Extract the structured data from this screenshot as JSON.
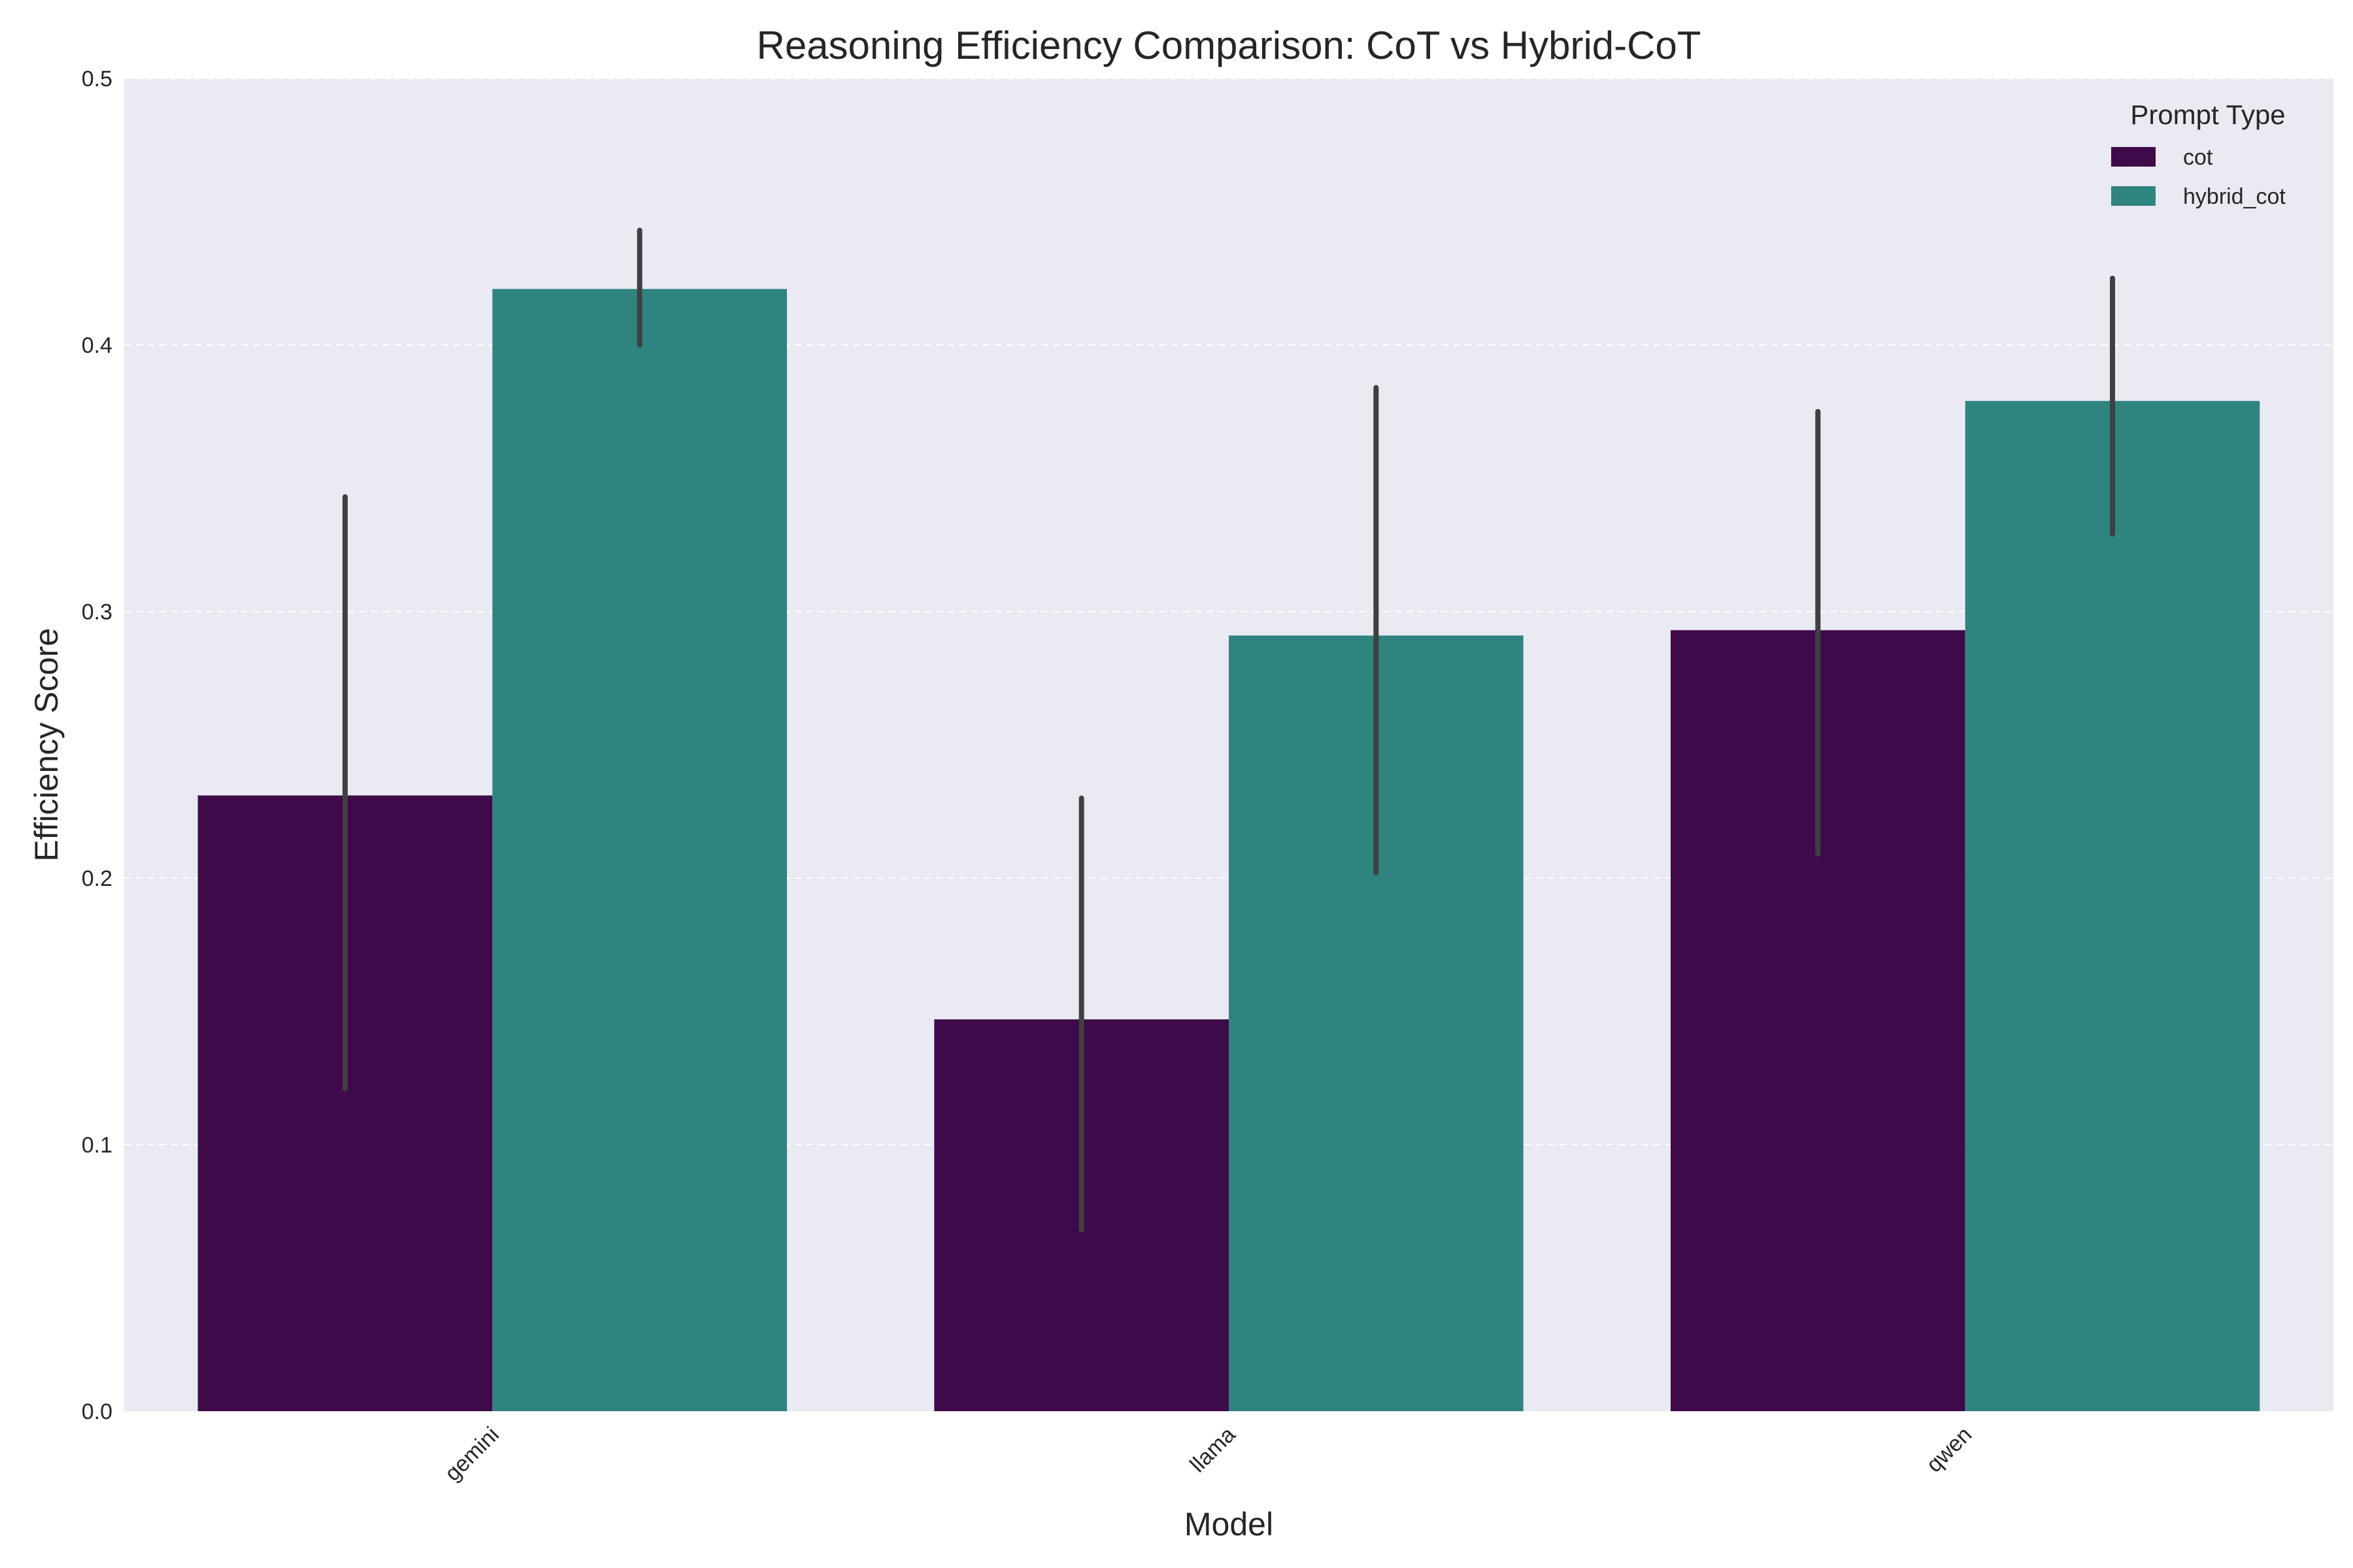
{
  "chart_data": {
    "type": "bar",
    "title": "Reasoning Efficiency Comparison: CoT vs Hybrid-CoT",
    "xlabel": "Model",
    "ylabel": "Efficiency Score",
    "categories": [
      "gemini",
      "llama",
      "qwen"
    ],
    "ylim": [
      0,
      0.5
    ],
    "yticks": [
      0.0,
      0.1,
      0.2,
      0.3,
      0.4,
      0.5
    ],
    "grid": true,
    "legend": {
      "title": "Prompt Type",
      "placement": "top-right"
    },
    "series": [
      {
        "name": "cot",
        "color": "#3f0a4a",
        "values": [
          0.231,
          0.147,
          0.293
        ],
        "error_low": [
          0.121,
          0.068,
          0.209
        ],
        "error_high": [
          0.343,
          0.23,
          0.375
        ]
      },
      {
        "name": "hybrid_cot",
        "color": "#2f8480",
        "values": [
          0.421,
          0.291,
          0.379
        ],
        "error_low": [
          0.4,
          0.202,
          0.329
        ],
        "error_high": [
          0.443,
          0.384,
          0.425
        ]
      }
    ],
    "background_color": "#eaeaf2",
    "errorbar_color": "#404040"
  }
}
